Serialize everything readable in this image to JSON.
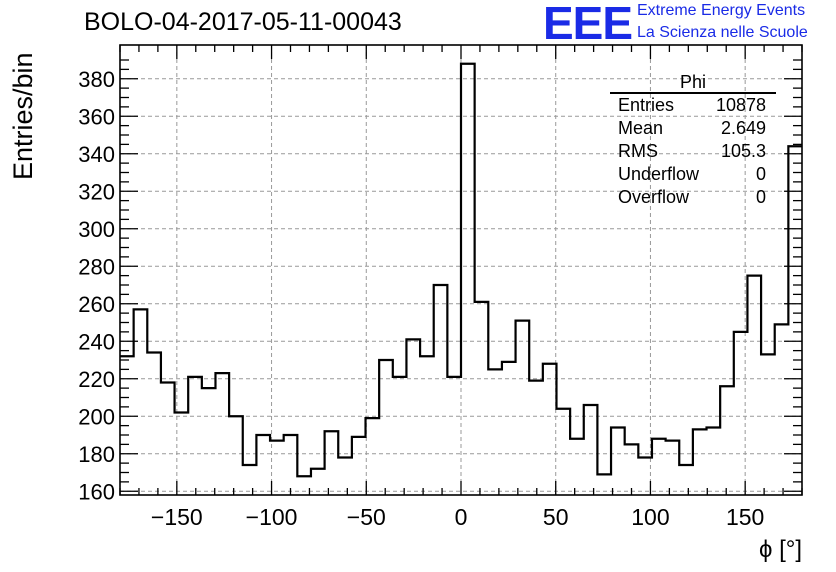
{
  "title": "BOLO-04-2017-05-11-00043",
  "logo": {
    "mark": "EEE",
    "line1": "Extreme Energy Events",
    "line2": "La Scienza nelle Scuole"
  },
  "stats": {
    "name": "Phi",
    "rows": [
      {
        "label": "Entries",
        "value": "10878"
      },
      {
        "label": "Mean",
        "value": "2.649"
      },
      {
        "label": "RMS",
        "value": "105.3"
      },
      {
        "label": "Underflow",
        "value": "0"
      },
      {
        "label": "Overflow",
        "value": "0"
      }
    ]
  },
  "chart_data": {
    "type": "bar",
    "style": "step-histogram",
    "title": "BOLO-04-2017-05-11-00043",
    "xlabel": "ϕ [°]",
    "ylabel": "Entries/bin",
    "xlim": [
      -180,
      180
    ],
    "ylim": [
      158,
      398
    ],
    "bin_width": 7.2,
    "x_ticks": [
      -150,
      -100,
      -50,
      0,
      50,
      100,
      150
    ],
    "y_ticks": [
      160,
      180,
      200,
      220,
      240,
      260,
      280,
      300,
      320,
      340,
      360,
      380
    ],
    "grid": true,
    "line_color": "#000000",
    "values": [
      232,
      257,
      234,
      218,
      202,
      221,
      215,
      223,
      200,
      174,
      190,
      187,
      190,
      168,
      172,
      192,
      178,
      189,
      199,
      230,
      221,
      241,
      232,
      270,
      221,
      388,
      261,
      225,
      229,
      251,
      219,
      228,
      204,
      188,
      206,
      169,
      194,
      185,
      178,
      188,
      187,
      174,
      193,
      194,
      216,
      245,
      275,
      233,
      249,
      344
    ]
  }
}
